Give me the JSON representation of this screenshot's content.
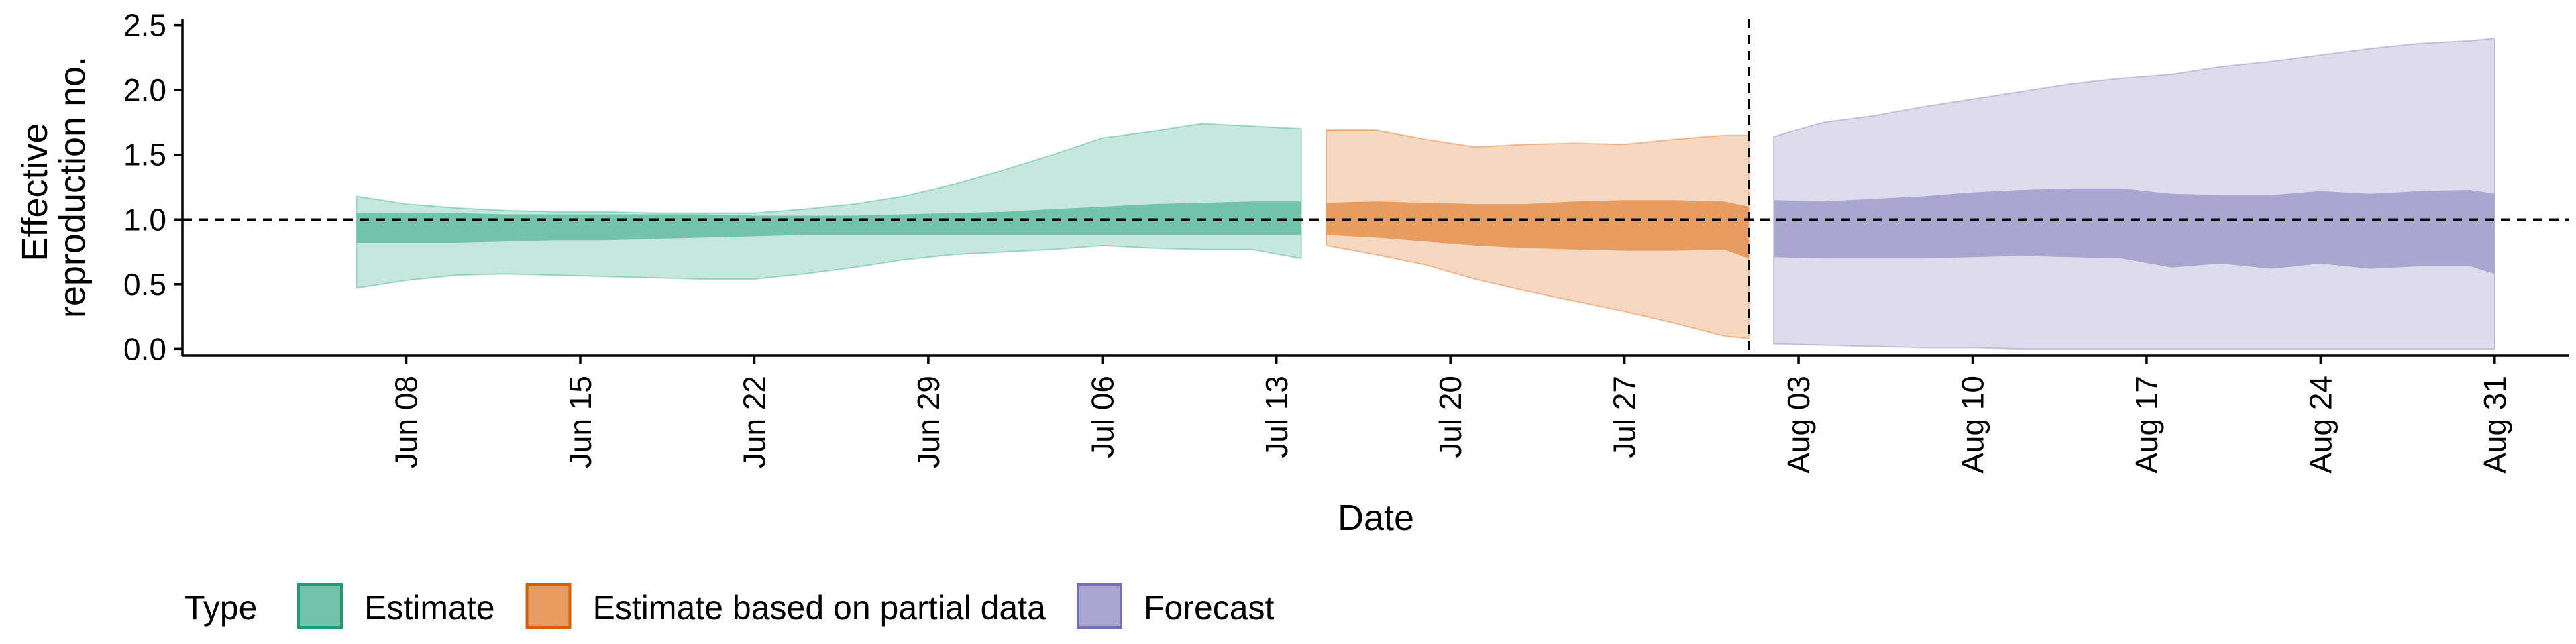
{
  "chart_data": {
    "type": "area",
    "title": "",
    "xlabel": "Date",
    "ylabel_lines": [
      "Effective",
      "reproduction no."
    ],
    "ylim": [
      -0.05,
      2.55
    ],
    "yticks": [
      0.0,
      0.5,
      1.0,
      1.5,
      2.0,
      2.5
    ],
    "ytick_labels": [
      "0.0",
      "0.5",
      "1.0",
      "1.5",
      "2.0",
      "2.5"
    ],
    "xlim": [
      "2020-05-30",
      "2020-09-03"
    ],
    "xticks": [
      "2020-06-08",
      "2020-06-15",
      "2020-06-22",
      "2020-06-29",
      "2020-07-06",
      "2020-07-13",
      "2020-07-20",
      "2020-07-27",
      "2020-08-03",
      "2020-08-10",
      "2020-08-17",
      "2020-08-24",
      "2020-08-31"
    ],
    "xtick_labels": [
      "Jun 08",
      "Jun 15",
      "Jun 22",
      "Jun 29",
      "Jul 06",
      "Jul 13",
      "Jul 20",
      "Jul 27",
      "Aug 03",
      "Aug 10",
      "Aug 17",
      "Aug 24",
      "Aug 31"
    ],
    "reference_line_y": 1.0,
    "reference_line_x": "2020-08-01",
    "grid": false,
    "legend": {
      "title": "Type",
      "position": "bottom-left"
    },
    "series": [
      {
        "name": "Estimate",
        "color": "#1b9e77",
        "x": [
          "2020-06-06",
          "2020-06-08",
          "2020-06-10",
          "2020-06-12",
          "2020-06-14",
          "2020-06-16",
          "2020-06-18",
          "2020-06-20",
          "2020-06-22",
          "2020-06-24",
          "2020-06-26",
          "2020-06-28",
          "2020-06-30",
          "2020-07-02",
          "2020-07-04",
          "2020-07-06",
          "2020-07-08",
          "2020-07-10",
          "2020-07-12",
          "2020-07-14"
        ],
        "outer_lower": [
          0.47,
          0.53,
          0.57,
          0.58,
          0.57,
          0.56,
          0.55,
          0.54,
          0.54,
          0.58,
          0.63,
          0.69,
          0.73,
          0.75,
          0.77,
          0.8,
          0.78,
          0.77,
          0.77,
          0.7
        ],
        "outer_upper": [
          1.18,
          1.12,
          1.09,
          1.07,
          1.06,
          1.06,
          1.05,
          1.05,
          1.05,
          1.08,
          1.12,
          1.18,
          1.27,
          1.38,
          1.5,
          1.63,
          1.68,
          1.74,
          1.72,
          1.7
        ],
        "inner_lower": [
          0.82,
          0.82,
          0.82,
          0.83,
          0.84,
          0.84,
          0.85,
          0.86,
          0.87,
          0.88,
          0.88,
          0.88,
          0.88,
          0.88,
          0.88,
          0.88,
          0.88,
          0.88,
          0.88,
          0.88
        ],
        "inner_upper": [
          1.05,
          1.05,
          1.05,
          1.04,
          1.04,
          1.04,
          1.04,
          1.04,
          1.03,
          1.03,
          1.03,
          1.04,
          1.05,
          1.06,
          1.08,
          1.1,
          1.12,
          1.13,
          1.14,
          1.14
        ]
      },
      {
        "name": "Estimate based on partial data",
        "color": "#d95f02",
        "x": [
          "2020-07-15",
          "2020-07-17",
          "2020-07-19",
          "2020-07-21",
          "2020-07-23",
          "2020-07-25",
          "2020-07-27",
          "2020-07-29",
          "2020-07-31",
          "2020-08-01"
        ],
        "outer_lower": [
          0.8,
          0.73,
          0.65,
          0.54,
          0.45,
          0.37,
          0.29,
          0.2,
          0.1,
          0.08
        ],
        "outer_upper": [
          1.69,
          1.69,
          1.62,
          1.56,
          1.58,
          1.59,
          1.58,
          1.62,
          1.65,
          1.65
        ],
        "inner_lower": [
          0.88,
          0.86,
          0.83,
          0.8,
          0.78,
          0.77,
          0.76,
          0.76,
          0.77,
          0.7
        ],
        "inner_upper": [
          1.13,
          1.14,
          1.13,
          1.12,
          1.12,
          1.14,
          1.15,
          1.15,
          1.14,
          1.1
        ]
      },
      {
        "name": "Forecast",
        "color": "#7570b3",
        "x": [
          "2020-08-02",
          "2020-08-04",
          "2020-08-06",
          "2020-08-08",
          "2020-08-10",
          "2020-08-12",
          "2020-08-14",
          "2020-08-16",
          "2020-08-18",
          "2020-08-20",
          "2020-08-22",
          "2020-08-24",
          "2020-08-26",
          "2020-08-28",
          "2020-08-30",
          "2020-08-31"
        ],
        "outer_lower": [
          0.04,
          0.03,
          0.02,
          0.01,
          0.01,
          0.0,
          0.0,
          0.0,
          0.0,
          0.0,
          0.0,
          0.0,
          0.0,
          0.0,
          0.0,
          0.0
        ],
        "outer_upper": [
          1.64,
          1.75,
          1.8,
          1.87,
          1.93,
          1.99,
          2.05,
          2.09,
          2.12,
          2.18,
          2.22,
          2.27,
          2.32,
          2.36,
          2.38,
          2.4
        ],
        "inner_lower": [
          0.71,
          0.7,
          0.7,
          0.7,
          0.71,
          0.72,
          0.71,
          0.7,
          0.63,
          0.66,
          0.62,
          0.66,
          0.62,
          0.64,
          0.64,
          0.58
        ],
        "inner_upper": [
          1.15,
          1.14,
          1.16,
          1.18,
          1.21,
          1.23,
          1.24,
          1.24,
          1.2,
          1.19,
          1.19,
          1.22,
          1.2,
          1.22,
          1.23,
          1.2
        ]
      }
    ]
  }
}
